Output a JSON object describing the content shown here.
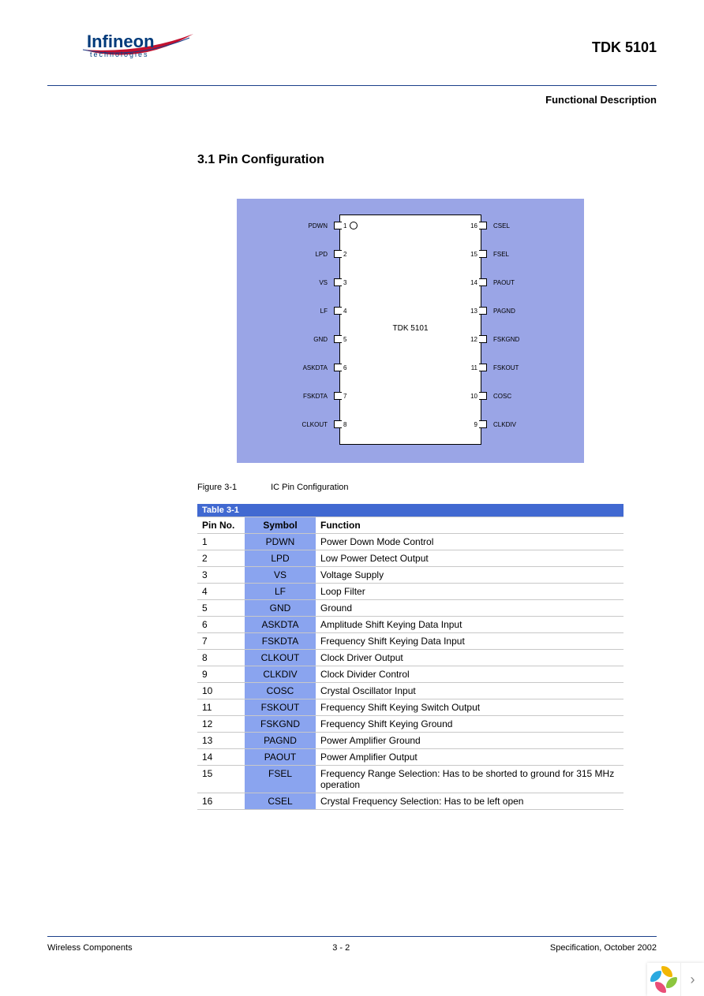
{
  "header": {
    "logo_main": "Infineon",
    "logo_sub": "technologies",
    "product": "TDK 5101",
    "section_label": "Functional Description"
  },
  "section": {
    "heading": "3.1 Pin Configuration"
  },
  "diagram": {
    "background_color": "#9aa5e6",
    "chip_label": "TDK 5101",
    "left_pins": [
      {
        "n": "1",
        "label": "PDWN"
      },
      {
        "n": "2",
        "label": "LPD"
      },
      {
        "n": "3",
        "label": "VS"
      },
      {
        "n": "4",
        "label": "LF"
      },
      {
        "n": "5",
        "label": "GND"
      },
      {
        "n": "6",
        "label": "ASKDTA"
      },
      {
        "n": "7",
        "label": "FSKDTA"
      },
      {
        "n": "8",
        "label": "CLKOUT"
      }
    ],
    "right_pins": [
      {
        "n": "16",
        "label": "CSEL"
      },
      {
        "n": "15",
        "label": "FSEL"
      },
      {
        "n": "14",
        "label": "PAOUT"
      },
      {
        "n": "13",
        "label": "PAGND"
      },
      {
        "n": "12",
        "label": "FSKGND"
      },
      {
        "n": "11",
        "label": "FSKOUT"
      },
      {
        "n": "10",
        "label": "COSC"
      },
      {
        "n": "9",
        "label": "CLKDIV"
      }
    ],
    "caption_num": "Figure 3-1",
    "caption_text": "IC Pin Configuration"
  },
  "table": {
    "title": "Table 3-1",
    "columns": [
      "Pin No.",
      "Symbol",
      "Function"
    ],
    "rows": [
      [
        "1",
        "PDWN",
        "Power Down Mode Control"
      ],
      [
        "2",
        "LPD",
        "Low Power Detect Output"
      ],
      [
        "3",
        "VS",
        "Voltage Supply"
      ],
      [
        "4",
        "LF",
        "Loop Filter"
      ],
      [
        "5",
        "GND",
        "Ground"
      ],
      [
        "6",
        "ASKDTA",
        "Amplitude Shift Keying Data Input"
      ],
      [
        "7",
        "FSKDTA",
        "Frequency Shift Keying Data Input"
      ],
      [
        "8",
        "CLKOUT",
        "Clock Driver Output"
      ],
      [
        "9",
        "CLKDIV",
        "Clock Divider Control"
      ],
      [
        "10",
        "COSC",
        "Crystal Oscillator Input"
      ],
      [
        "11",
        "FSKOUT",
        "Frequency Shift Keying Switch Output"
      ],
      [
        "12",
        "FSKGND",
        "Frequency Shift Keying Ground"
      ],
      [
        "13",
        "PAGND",
        "Power Amplifier Ground"
      ],
      [
        "14",
        "PAOUT",
        "Power Amplifier Output"
      ],
      [
        "15",
        "FSEL",
        "Frequency Range Selection: Has to be shorted to ground for 315 MHz operation"
      ],
      [
        "16",
        "CSEL",
        "Crystal Frequency Selection: Has to be left open"
      ]
    ],
    "header_bg": "#4169d1",
    "symbol_bg": "#8aa4ef"
  },
  "footer": {
    "left": "Wireless Components",
    "center": "3 - 2",
    "right": "Specification, October 2002"
  },
  "corner": {
    "petal_colors": [
      "#f2b705",
      "#8cc63e",
      "#e94e77",
      "#2aa9e0"
    ],
    "arrow": "›"
  }
}
